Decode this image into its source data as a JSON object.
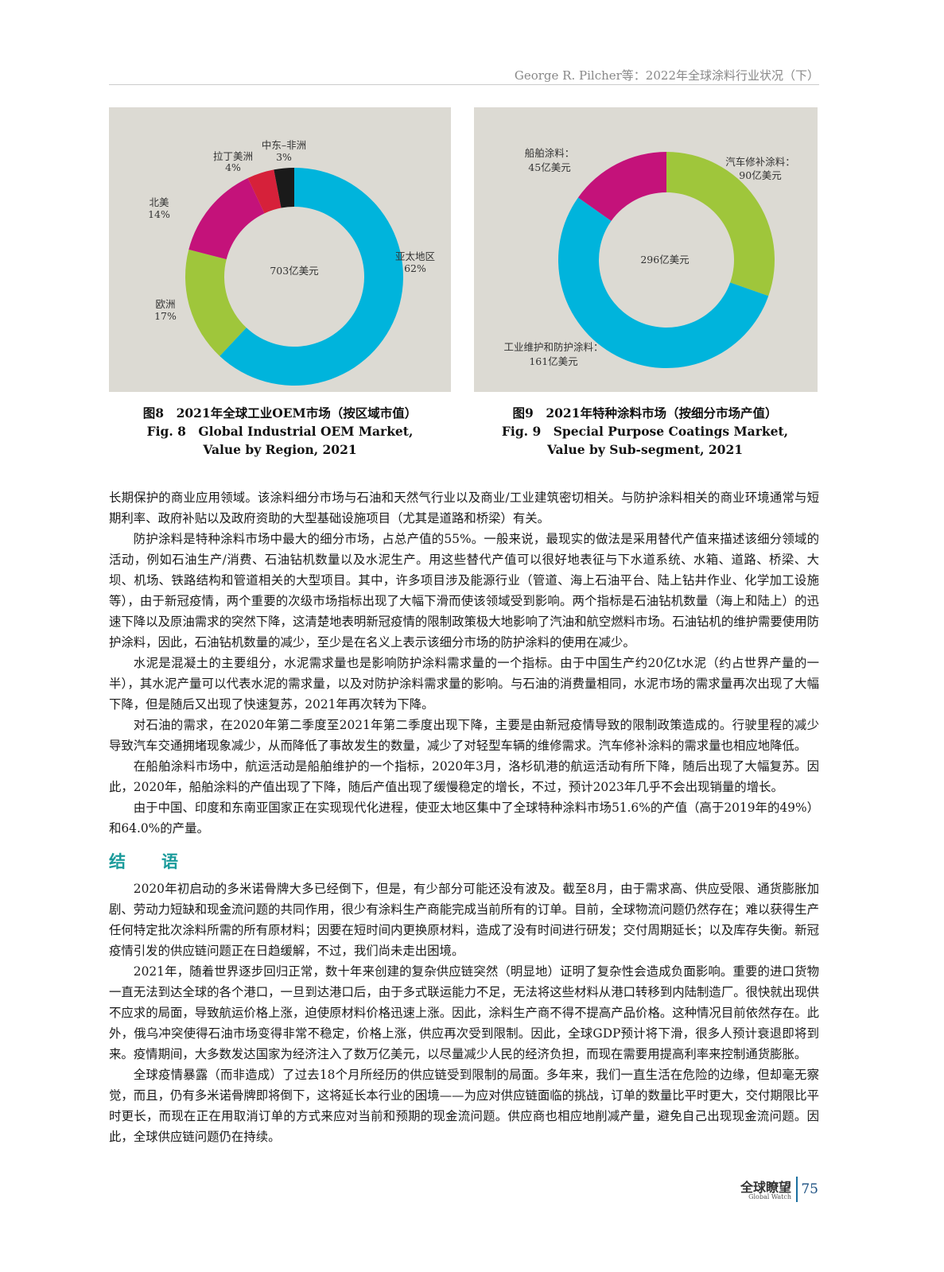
{
  "header": {
    "running_title": "George R. Pilcher等：2022年全球涂料行业状况（下）"
  },
  "chart_data": [
    {
      "type": "pie",
      "variant": "donut",
      "center_label": "703亿美元",
      "categories": [
        "亚太地区",
        "欧洲",
        "北美",
        "拉丁美洲",
        "中东–非洲"
      ],
      "values": [
        62,
        17,
        14,
        4,
        3
      ],
      "value_labels": [
        "62%",
        "17%",
        "14%",
        "4%",
        "3%"
      ],
      "unit": "%",
      "colors": [
        "#00b4dc",
        "#9fc63b",
        "#c4127a",
        "#d6213a",
        "#1a1a1a"
      ],
      "caption_cn": "图8　2021年全球工业OEM市场（按区域市值）",
      "caption_en_1": "Fig. 8　Global Industrial OEM Market,",
      "caption_en_2": "Value by Region, 2021"
    },
    {
      "type": "pie",
      "variant": "donut",
      "center_label": "296亿美元",
      "categories": [
        "汽车修补涂料：",
        "工业维护和防护涂料：",
        "船舶涂料："
      ],
      "values": [
        90,
        161,
        45
      ],
      "value_labels": [
        "90亿美元",
        "161亿美元",
        "45亿美元"
      ],
      "unit": "亿美元",
      "colors": [
        "#9fc63b",
        "#00b4dc",
        "#c4127a"
      ],
      "caption_cn": "图9　2021年特种涂料市场（按细分市场产值）",
      "caption_en_1": "Fig. 9　Special Purpose Coatings Market,",
      "caption_en_2": "Value by Sub-segment, 2021"
    }
  ],
  "body": {
    "paragraphs": [
      "长期保护的商业应用领域。该涂料细分市场与石油和天然气行业以及商业/工业建筑密切相关。与防护涂料相关的商业环境通常与短期利率、政府补贴以及政府资助的大型基础设施项目（尤其是道路和桥梁）有关。",
      "防护涂料是特种涂料市场中最大的细分市场，占总产值的55%。一般来说，最现实的做法是采用替代产值来描述该细分领域的活动，例如石油生产/消费、石油钻机数量以及水泥生产。用这些替代产值可以很好地表征与下水道系统、水箱、道路、桥梁、大坝、机场、铁路结构和管道相关的大型项目。其中，许多项目涉及能源行业（管道、海上石油平台、陆上钻井作业、化学加工设施等），由于新冠疫情，两个重要的次级市场指标出现了大幅下滑而使该领域受到影响。两个指标是石油钻机数量（海上和陆上）的迅速下降以及原油需求的突然下降，这清楚地表明新冠疫情的限制政策极大地影响了汽油和航空燃料市场。石油钻机的维护需要使用防护涂料，因此，石油钻机数量的减少，至少是在名义上表示该细分市场的防护涂料的使用在减少。",
      "水泥是混凝土的主要组分，水泥需求量也是影响防护涂料需求量的一个指标。由于中国生产约20亿t水泥（约占世界产量的一半），其水泥产量可以代表水泥的需求量，以及对防护涂料需求量的影响。与石油的消费量相同，水泥市场的需求量再次出现了大幅下降，但是随后又出现了快速复苏，2021年再次转为下降。",
      "对石油的需求，在2020年第二季度至2021年第二季度出现下降，主要是由新冠疫情导致的限制政策造成的。行驶里程的减少导致汽车交通拥堵现象减少，从而降低了事故发生的数量，减少了对轻型车辆的维修需求。汽车修补涂料的需求量也相应地降低。",
      "在船舶涂料市场中，航运活动是船舶维护的一个指标，2020年3月，洛杉矶港的航运活动有所下降，随后出现了大幅复苏。因此，2020年，船舶涂料的产值出现了下降，随后产值出现了缓慢稳定的增长，不过，预计2023年几乎不会出现销量的增长。",
      "由于中国、印度和东南亚国家正在实现现代化进程，使亚太地区集中了全球特种涂料市场51.6%的产值（高于2019年的49%）和64.0%的产量。"
    ],
    "section_title": "结　语",
    "conclusion": [
      "2020年初启动的多米诺骨牌大多已经倒下，但是，有少部分可能还没有波及。截至8月，由于需求高、供应受限、通货膨胀加剧、劳动力短缺和现金流问题的共同作用，很少有涂料生产商能完成当前所有的订单。目前，全球物流问题仍然存在；难以获得生产任何特定批次涂料所需的所有原材料；因要在短时间内更换原材料，造成了没有时间进行研发；交付周期延长；以及库存失衡。新冠疫情引发的供应链问题正在日趋缓解，不过，我们尚未走出困境。",
      "2021年，随着世界逐步回归正常，数十年来创建的复杂供应链突然（明显地）证明了复杂性会造成负面影响。重要的进口货物一直无法到达全球的各个港口，一旦到达港口后，由于多式联运能力不足，无法将这些材料从港口转移到内陆制造厂。很快就出现供不应求的局面，导致航运价格上涨，迫使原材料价格迅速上涨。因此，涂料生产商不得不提高产品价格。这种情况目前依然存在。此外，俄乌冲突使得石油市场变得非常不稳定，价格上涨，供应再次受到限制。因此，全球GDP预计将下滑，很多人预计衰退即将到来。疫情期间，大多数发达国家为经济注入了数万亿美元，以尽量减少人民的经济负担，而现在需要用提高利率来控制通货膨胀。",
      "全球疫情暴露（而非造成）了过去18个月所经历的供应链受到限制的局面。多年来，我们一直生活在危险的边缘，但却毫无察觉，而且，仍有多米诺骨牌即将倒下，这将延长本行业的困境——为应对供应链面临的挑战，订单的数量比平时更大，交付期限比平时更长，而现在正在用取消订单的方式来应对当前和预期的现金流问题。供应商也相应地削减产量，避免自己出现现金流问题。因此，全球供应链问题仍在持续。"
    ]
  },
  "footer": {
    "brand": "全球瞭望",
    "brand_en": "Global Watch",
    "page_number": "75"
  }
}
